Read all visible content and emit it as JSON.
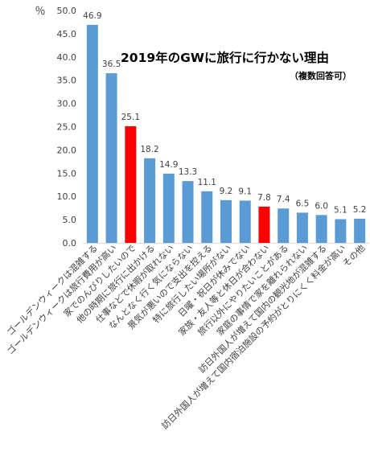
{
  "chart_data": {
    "type": "bar",
    "title": "2019年のGWに旅行に行かない理由",
    "subtitle": "（複数回答可）",
    "ylabel": "％",
    "ylim": [
      0,
      50
    ],
    "yticks": [
      "0.0",
      "5.0",
      "10.0",
      "15.0",
      "20.0",
      "25.0",
      "30.0",
      "35.0",
      "40.0",
      "45.0",
      "50.0"
    ],
    "grid": false,
    "legend": "none",
    "categories": [
      "ゴールデンウィークは混雑する",
      "ゴールデンウィークは旅行費用が高い",
      "家でのんびりしたいので",
      "他の時期に旅行に出かける",
      "仕事などで休暇が取れない",
      "なんとなく行く気にならない",
      "景気が悪いので支出を控える",
      "特に旅行したい場所がない",
      "日曜・祝日が休みでない",
      "家族・友人等と休日が合わない",
      "旅行以外にやりたいことがある",
      "家庭の事情で家を離れられない",
      "訪日外国人が増えて国内の観光地が混雑する",
      "訪日外国人が増えて国内宿泊施設の予約がとりにくく料金が高い",
      "その他"
    ],
    "values": [
      46.9,
      36.5,
      25.1,
      18.2,
      14.9,
      13.3,
      11.1,
      9.2,
      9.1,
      7.8,
      7.4,
      6.5,
      6.0,
      5.1,
      5.2
    ],
    "value_labels": [
      "46.9",
      "36.5",
      "25.1",
      "18.2",
      "14.9",
      "13.3",
      "11.1",
      "9.2",
      "9.1",
      "7.8",
      "7.4",
      "6.5",
      "6.0",
      "5.1",
      "5.2"
    ],
    "highlight_indices": [
      2,
      9
    ],
    "colors": {
      "bar": "#5b9bd5",
      "highlight": "#ff0000",
      "axis": "#d9d9d9",
      "text": "#404040"
    }
  }
}
